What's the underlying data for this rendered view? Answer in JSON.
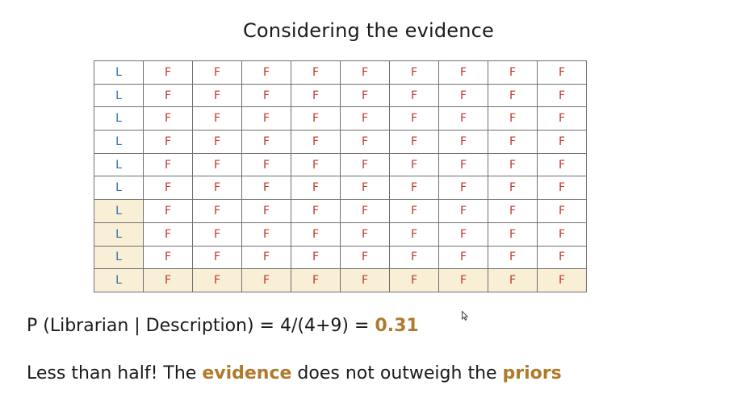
{
  "slide": {
    "title": "Considering the evidence"
  },
  "grid": {
    "rows": [
      [
        "L",
        "F",
        "F",
        "F",
        "F",
        "F",
        "F",
        "F",
        "F",
        "F"
      ],
      [
        "L",
        "F",
        "F",
        "F",
        "F",
        "F",
        "F",
        "F",
        "F",
        "F"
      ],
      [
        "L",
        "F",
        "F",
        "F",
        "F",
        "F",
        "F",
        "F",
        "F",
        "F"
      ],
      [
        "L",
        "F",
        "F",
        "F",
        "F",
        "F",
        "F",
        "F",
        "F",
        "F"
      ],
      [
        "L",
        "F",
        "F",
        "F",
        "F",
        "F",
        "F",
        "F",
        "F",
        "F"
      ],
      [
        "L",
        "F",
        "F",
        "F",
        "F",
        "F",
        "F",
        "F",
        "F",
        "F"
      ],
      [
        "L",
        "F",
        "F",
        "F",
        "F",
        "F",
        "F",
        "F",
        "F",
        "F"
      ],
      [
        "L",
        "F",
        "F",
        "F",
        "F",
        "F",
        "F",
        "F",
        "F",
        "F"
      ],
      [
        "L",
        "F",
        "F",
        "F",
        "F",
        "F",
        "F",
        "F",
        "F",
        "F"
      ],
      [
        "L",
        "F",
        "F",
        "F",
        "F",
        "F",
        "F",
        "F",
        "F",
        "F"
      ]
    ],
    "highlighted_cells": [
      [
        6,
        0
      ],
      [
        7,
        0
      ],
      [
        8,
        0
      ],
      [
        9,
        0
      ],
      [
        9,
        1
      ],
      [
        9,
        2
      ],
      [
        9,
        3
      ],
      [
        9,
        4
      ],
      [
        9,
        5
      ],
      [
        9,
        6
      ],
      [
        9,
        7
      ],
      [
        9,
        8
      ],
      [
        9,
        9
      ]
    ],
    "colors": {
      "librarian": "#2f6db5",
      "farmer": "#c0392b",
      "highlight": "#f8efd6"
    }
  },
  "formula": {
    "prefix": "P (Librarian | Description) = 4/(4+9) = ",
    "result": "0.31"
  },
  "conclusion": {
    "part1": "Less than half! The ",
    "word1": "evidence",
    "part2": " does not outweigh the ",
    "word2": "priors"
  },
  "accent_color": "#b07a2c",
  "icons": {
    "cursor": "mouse-pointer-icon"
  }
}
